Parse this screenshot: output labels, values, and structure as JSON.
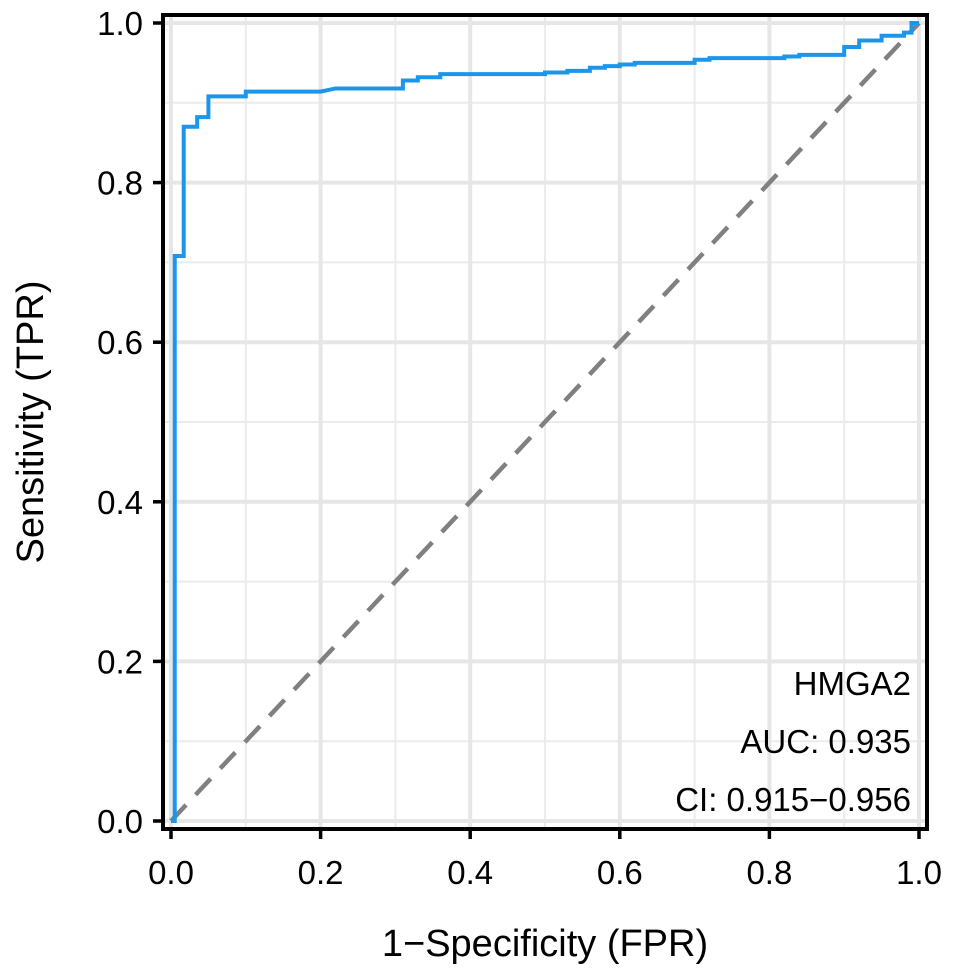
{
  "chart_data": {
    "type": "line",
    "title": "",
    "xlabel": "1−Specificity (FPR)",
    "ylabel": "Sensitivity (TPR)",
    "xlim": [
      0,
      1
    ],
    "ylim": [
      0,
      1
    ],
    "xticks": [
      0.0,
      0.2,
      0.4,
      0.6,
      0.8,
      1.0
    ],
    "yticks": [
      0.0,
      0.2,
      0.4,
      0.6,
      0.8,
      1.0
    ],
    "xtick_labels": [
      "0.0",
      "0.2",
      "0.4",
      "0.6",
      "0.8",
      "1.0"
    ],
    "ytick_labels": [
      "0.0",
      "0.2",
      "0.4",
      "0.6",
      "0.8",
      "1.0"
    ],
    "grid": true,
    "series": [
      {
        "name": "HMGA2",
        "color": "#1c96ea",
        "style": "solid",
        "step": true,
        "x": [
          0.0,
          0.0,
          0.005,
          0.005,
          0.017,
          0.017,
          0.035,
          0.035,
          0.05,
          0.05,
          0.1,
          0.1,
          0.2,
          0.22,
          0.31,
          0.31,
          0.33,
          0.33,
          0.36,
          0.36,
          0.5,
          0.5,
          0.53,
          0.53,
          0.56,
          0.56,
          0.58,
          0.58,
          0.6,
          0.6,
          0.62,
          0.62,
          0.7,
          0.7,
          0.72,
          0.72,
          0.82,
          0.82,
          0.84,
          0.84,
          0.9,
          0.9,
          0.92,
          0.92,
          0.95,
          0.95,
          0.98,
          0.98,
          0.99,
          0.99,
          1.0
        ],
        "y": [
          0.0,
          0.0,
          0.0,
          0.708,
          0.708,
          0.87,
          0.87,
          0.882,
          0.882,
          0.908,
          0.908,
          0.914,
          0.914,
          0.918,
          0.918,
          0.928,
          0.928,
          0.932,
          0.932,
          0.936,
          0.936,
          0.938,
          0.938,
          0.94,
          0.94,
          0.944,
          0.944,
          0.946,
          0.946,
          0.948,
          0.948,
          0.95,
          0.95,
          0.954,
          0.954,
          0.956,
          0.956,
          0.958,
          0.958,
          0.96,
          0.96,
          0.97,
          0.97,
          0.978,
          0.978,
          0.984,
          0.984,
          0.988,
          0.988,
          1.0,
          1.0
        ]
      },
      {
        "name": "reference",
        "color": "#808080",
        "style": "dashed",
        "x": [
          0,
          1
        ],
        "y": [
          0,
          1
        ]
      }
    ],
    "annotations": [
      "HMGA2",
      "AUC: 0.935",
      "CI: 0.915−0.956"
    ],
    "annotation_placement": "bottom-right"
  }
}
